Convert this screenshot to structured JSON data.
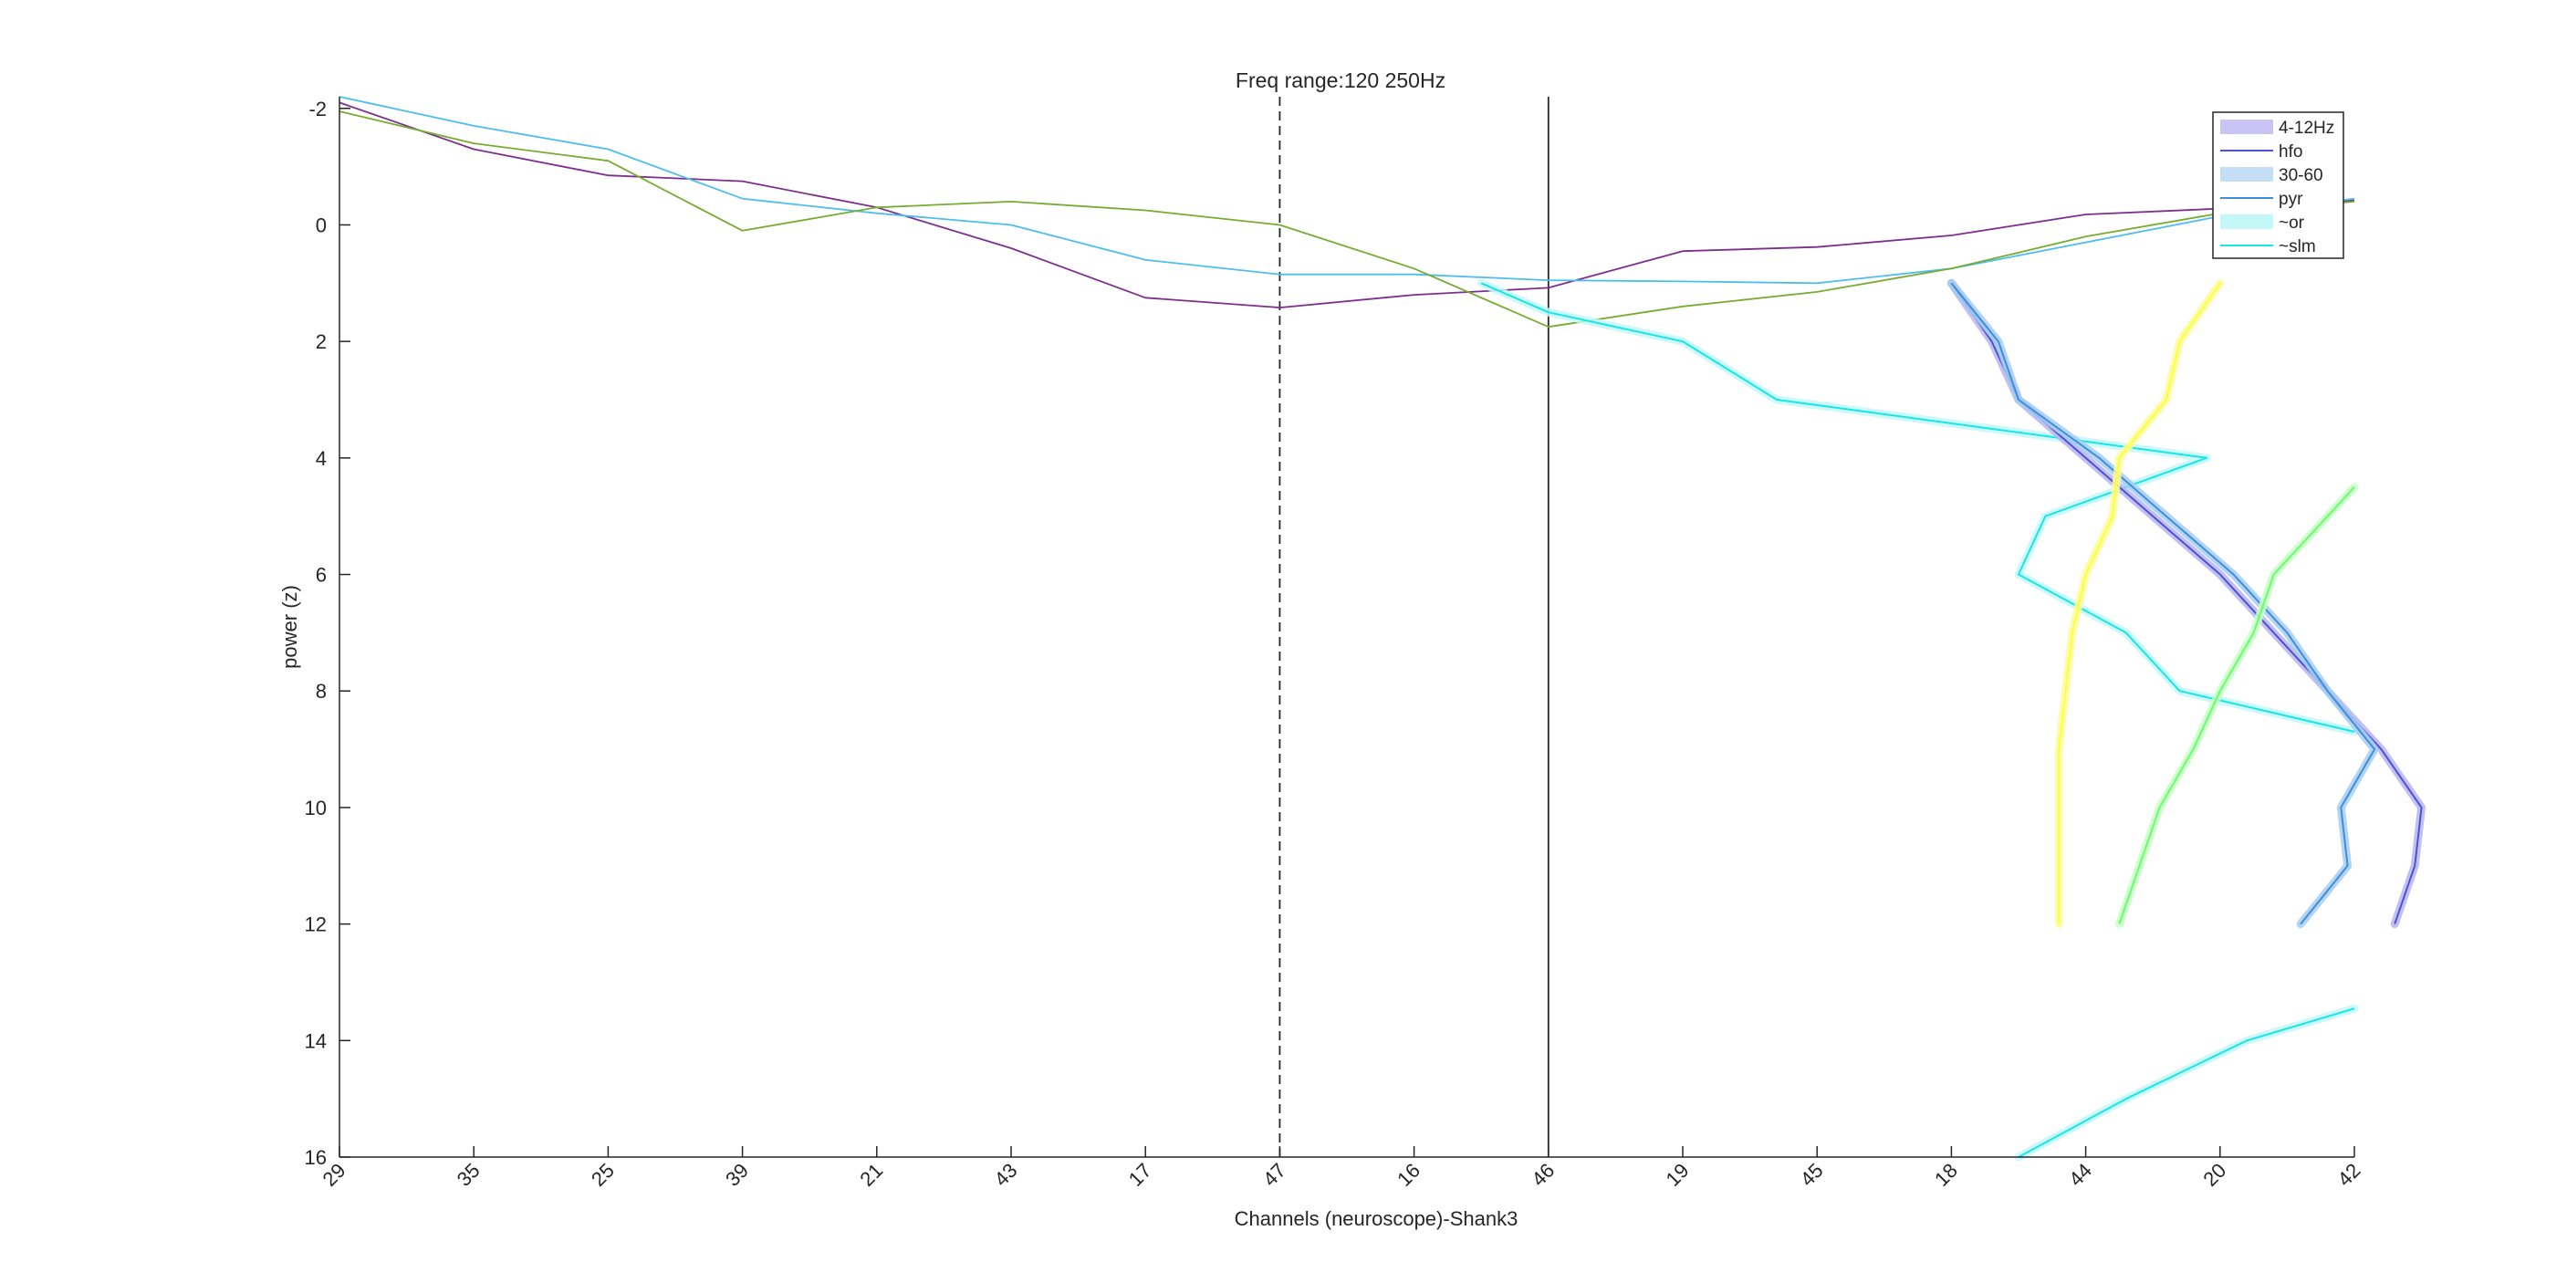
{
  "chart_data": {
    "type": "line",
    "title": "Freq range:120  250Hz",
    "xlabel": "Channels (neuroscope)-Shank3",
    "ylabel": "power (z)",
    "y_reversed": true,
    "ylim": [
      -2.2,
      16
    ],
    "y_ticks": [
      -2,
      0,
      2,
      4,
      6,
      8,
      10,
      12,
      14,
      16
    ],
    "x_categories": [
      "29",
      "35",
      "25",
      "39",
      "21",
      "43",
      "17",
      "47",
      "16",
      "46",
      "19",
      "45",
      "18",
      "44",
      "20",
      "42"
    ],
    "vertical_lines": [
      {
        "channel": "47",
        "style": "dashed",
        "color": "#262626"
      },
      {
        "channel": "46",
        "style": "solid",
        "color": "#262626"
      }
    ],
    "legend": {
      "placement": "top-right",
      "entries": [
        {
          "label": "4-12Hz",
          "kind": "patch",
          "color": "#c8c4f4"
        },
        {
          "label": "hfo",
          "kind": "line",
          "color": "#4a52d6"
        },
        {
          "label": "30-60",
          "kind": "patch",
          "color": "#c6def5"
        },
        {
          "label": "pyr",
          "kind": "line",
          "color": "#3c8fdd"
        },
        {
          "label": "~or",
          "kind": "patch",
          "color": "#c4f8f8"
        },
        {
          "label": "~slm",
          "kind": "line",
          "color": "#16e6e6"
        }
      ]
    },
    "series": [
      {
        "color": "#7e2f8e",
        "values": [
          -2.1,
          -1.3,
          -0.85,
          -0.75,
          -0.3,
          0.4,
          1.25,
          1.42,
          1.2,
          1.08,
          0.45,
          0.38,
          0.18,
          -0.18,
          -0.28,
          -0.42
        ]
      },
      {
        "color": "#4dbeee",
        "values": [
          -2.2,
          -1.7,
          -1.3,
          -0.45,
          -0.2,
          0.0,
          0.6,
          0.85,
          0.85,
          0.95,
          0.97,
          1.0,
          0.75,
          0.3,
          -0.15,
          -0.45
        ]
      },
      {
        "color": "#77ac30",
        "values": [
          -1.95,
          -1.4,
          -1.1,
          0.1,
          -0.3,
          -0.4,
          -0.25,
          0.0,
          0.75,
          1.75,
          1.4,
          1.15,
          0.75,
          0.2,
          -0.2,
          -0.4
        ]
      }
    ],
    "depth_profiles": [
      {
        "color": "#16e6e6",
        "band_color": "#c4f8f8",
        "points": [
          [
            8.5,
            1.0
          ],
          [
            9.0,
            1.5
          ],
          [
            10.0,
            2.0
          ],
          [
            10.7,
            3.0
          ],
          [
            13.9,
            4.0
          ],
          [
            12.7,
            5.0
          ],
          [
            12.5,
            6.0
          ],
          [
            13.3,
            7.0
          ],
          [
            13.7,
            8.0
          ],
          [
            15.0,
            8.7
          ]
        ]
      },
      {
        "color": "#4a52d6",
        "band_color": "#b8b4ee",
        "points": [
          [
            12.0,
            1.0
          ],
          [
            12.3,
            2.0
          ],
          [
            12.5,
            3.0
          ],
          [
            13.0,
            4.0
          ],
          [
            13.5,
            5.0
          ],
          [
            14.0,
            6.0
          ],
          [
            14.4,
            7.0
          ],
          [
            14.8,
            8.0
          ],
          [
            15.2,
            9.0
          ],
          [
            15.5,
            10.0
          ],
          [
            15.45,
            11.0
          ],
          [
            15.3,
            12.0
          ]
        ]
      },
      {
        "color": "#3c8fdd",
        "band_color": "#a6cdf0",
        "points": [
          [
            12.0,
            1.0
          ],
          [
            12.35,
            2.0
          ],
          [
            12.5,
            3.0
          ],
          [
            13.1,
            4.0
          ],
          [
            13.6,
            5.0
          ],
          [
            14.1,
            6.0
          ],
          [
            14.5,
            7.0
          ],
          [
            14.8,
            8.0
          ],
          [
            15.15,
            9.0
          ],
          [
            14.9,
            10.0
          ],
          [
            14.95,
            11.0
          ],
          [
            14.6,
            12.0
          ]
        ]
      },
      {
        "color": "#ffff33",
        "band_color": "#fcfca0",
        "points": [
          [
            14.0,
            1.0
          ],
          [
            13.7,
            2.0
          ],
          [
            13.6,
            3.0
          ],
          [
            13.25,
            4.0
          ],
          [
            13.2,
            5.0
          ],
          [
            13.0,
            6.0
          ],
          [
            12.9,
            7.0
          ],
          [
            12.85,
            8.0
          ],
          [
            12.8,
            9.0
          ],
          [
            12.8,
            10.0
          ],
          [
            12.8,
            11.0
          ],
          [
            12.8,
            12.0
          ]
        ]
      },
      {
        "color": "#66ff66",
        "band_color": "#c8ffc8",
        "points": [
          [
            15.0,
            4.5
          ],
          [
            14.8,
            5.0
          ],
          [
            14.4,
            6.0
          ],
          [
            14.25,
            7.0
          ],
          [
            14.0,
            8.0
          ],
          [
            13.8,
            9.0
          ],
          [
            13.55,
            10.0
          ],
          [
            13.4,
            11.0
          ],
          [
            13.25,
            12.0
          ]
        ]
      },
      {
        "color": "#16e6e6",
        "band_color": "#c4f8f8",
        "points": [
          [
            12.5,
            16.0
          ],
          [
            13.3,
            15.0
          ],
          [
            14.2,
            14.0
          ],
          [
            15.0,
            13.45
          ]
        ]
      }
    ]
  }
}
